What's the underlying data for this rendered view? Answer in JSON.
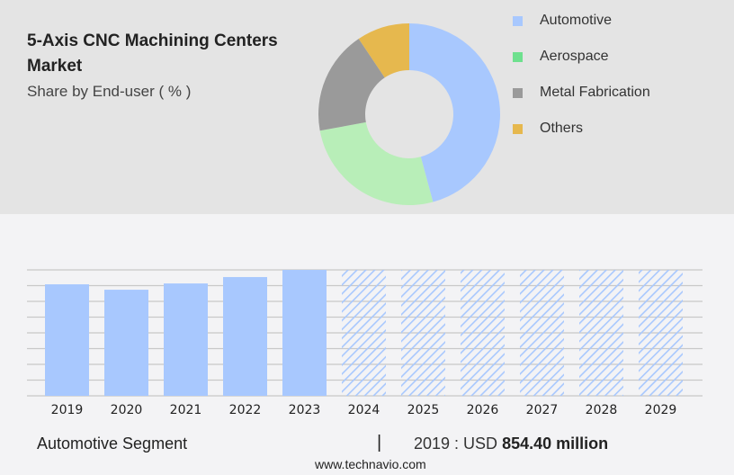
{
  "chart_data": [
    {
      "type": "pie",
      "subtype": "donut",
      "title": "5-Axis CNC Machining Centers Market",
      "subtitle": "Share by End-user ( % )",
      "legend_position": "right",
      "slices": [
        {
          "name": "Automotive",
          "value": 45.8,
          "color": "#a8c8fe"
        },
        {
          "name": "Aerospace",
          "value": 26.3,
          "color": "#b8eeb8",
          "legend_color": "#6ee08e"
        },
        {
          "name": "Metal Fabrication",
          "value": 18.5,
          "color": "#9a9a9a"
        },
        {
          "name": "Others",
          "value": 9.4,
          "color": "#e6b84e"
        }
      ]
    },
    {
      "type": "bar",
      "categories": [
        "2019",
        "2020",
        "2021",
        "2022",
        "2023",
        "2024",
        "2025",
        "2026",
        "2027",
        "2028",
        "2029"
      ],
      "values": [
        854.4,
        813,
        861,
        910,
        965,
        null,
        null,
        null,
        null,
        null,
        null
      ],
      "forecast_categories": [
        "2024",
        "2025",
        "2026",
        "2027",
        "2028",
        "2029"
      ],
      "ylim": [
        0,
        965
      ],
      "grid": true,
      "bar_color": "#a8c8fe"
    }
  ],
  "footer": {
    "segment": "Automotive Segment",
    "separator": "|",
    "value_prefix": "2019 : USD ",
    "value": "854.40 million",
    "site": "www.technavio.com"
  }
}
